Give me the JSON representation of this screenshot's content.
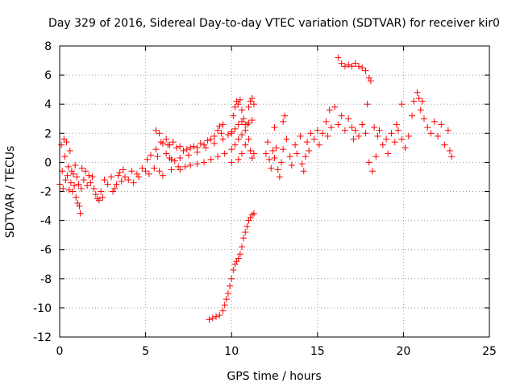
{
  "chart_data": {
    "type": "scatter",
    "title": "Day 329 of 2016, Sidereal Day-to-day VTEC variation (SDTVAR) for receiver kir0",
    "xlabel": "GPS time / hours",
    "ylabel": "SDTVAR / TECUs",
    "xlim": [
      0,
      25
    ],
    "ylim": [
      -12,
      8
    ],
    "grid": true,
    "legend": "none",
    "marker": "+",
    "marker_color": "#ff0000",
    "x_ticks": [
      "0",
      "5",
      "10",
      "15",
      "20",
      "25"
    ],
    "y_ticks": [
      "-12",
      "-10",
      "-8",
      "-6",
      "-4",
      "-2",
      "0",
      "2",
      "4",
      "6",
      "8"
    ],
    "series": [
      {
        "name": "SDTVAR",
        "points": [
          [
            0.0,
            -1.5
          ],
          [
            0.1,
            1.2
          ],
          [
            0.15,
            -0.6
          ],
          [
            0.2,
            -1.8
          ],
          [
            0.25,
            1.6
          ],
          [
            0.3,
            0.4
          ],
          [
            0.35,
            -1.2
          ],
          [
            0.4,
            1.4
          ],
          [
            0.45,
            -0.9
          ],
          [
            0.5,
            -0.3
          ],
          [
            0.55,
            -1.9
          ],
          [
            0.6,
            0.8
          ],
          [
            0.65,
            -1.4
          ],
          [
            0.7,
            -0.6
          ],
          [
            0.75,
            -2.0
          ],
          [
            0.8,
            -0.8
          ],
          [
            0.85,
            -1.6
          ],
          [
            0.9,
            -0.2
          ],
          [
            0.95,
            -2.4
          ],
          [
            1.0,
            -1.0
          ],
          [
            1.05,
            -2.8
          ],
          [
            1.1,
            -1.5
          ],
          [
            1.15,
            -3.0
          ],
          [
            1.2,
            -3.5
          ],
          [
            1.25,
            -1.8
          ],
          [
            1.3,
            -0.4
          ],
          [
            1.4,
            -1.2
          ],
          [
            1.5,
            -0.6
          ],
          [
            1.6,
            -1.6
          ],
          [
            1.7,
            -0.9
          ],
          [
            1.8,
            -1.4
          ],
          [
            1.9,
            -1.0
          ],
          [
            2.0,
            -1.8
          ],
          [
            2.1,
            -2.2
          ],
          [
            2.2,
            -2.5
          ],
          [
            2.3,
            -2.6
          ],
          [
            2.4,
            -2.0
          ],
          [
            2.5,
            -2.4
          ],
          [
            2.6,
            -1.2
          ],
          [
            2.8,
            -1.5
          ],
          [
            3.0,
            -1.0
          ],
          [
            3.1,
            -2.0
          ],
          [
            3.2,
            -1.8
          ],
          [
            3.3,
            -1.5
          ],
          [
            3.4,
            -0.9
          ],
          [
            3.5,
            -0.7
          ],
          [
            3.6,
            -1.3
          ],
          [
            3.7,
            -0.5
          ],
          [
            3.8,
            -1.0
          ],
          [
            4.0,
            -1.2
          ],
          [
            4.2,
            -0.6
          ],
          [
            4.3,
            -1.4
          ],
          [
            4.5,
            -0.8
          ],
          [
            4.6,
            -1.0
          ],
          [
            4.8,
            -0.4
          ],
          [
            5.0,
            -0.6
          ],
          [
            5.1,
            0.2
          ],
          [
            5.2,
            -0.8
          ],
          [
            5.3,
            0.5
          ],
          [
            5.5,
            -0.4
          ],
          [
            5.6,
            0.9
          ],
          [
            5.7,
            0.4
          ],
          [
            5.8,
            -0.6
          ],
          [
            6.0,
            -0.9
          ],
          [
            6.2,
            0.6
          ],
          [
            6.3,
            1.2
          ],
          [
            6.4,
            0.3
          ],
          [
            6.5,
            -0.5
          ],
          [
            6.7,
            0.1
          ],
          [
            6.9,
            -0.3
          ],
          [
            5.6,
            2.2
          ],
          [
            5.8,
            2.0
          ],
          [
            5.9,
            1.4
          ],
          [
            6.0,
            1.3
          ],
          [
            6.2,
            1.6
          ],
          [
            6.4,
            1.2
          ],
          [
            6.6,
            1.4
          ],
          [
            6.8,
            1.0
          ],
          [
            7.0,
            1.1
          ],
          [
            7.2,
            0.8
          ],
          [
            7.4,
            0.9
          ],
          [
            7.6,
            1.0
          ],
          [
            7.8,
            1.1
          ],
          [
            8.0,
            1.0
          ],
          [
            8.2,
            1.3
          ],
          [
            8.4,
            1.2
          ],
          [
            8.6,
            1.5
          ],
          [
            8.8,
            1.6
          ],
          [
            9.0,
            1.8
          ],
          [
            9.2,
            2.2
          ],
          [
            9.4,
            2.0
          ],
          [
            9.5,
            2.6
          ],
          [
            9.3,
            2.5
          ],
          [
            7.0,
            -0.5
          ],
          [
            7.3,
            -0.3
          ],
          [
            7.6,
            -0.2
          ],
          [
            8.0,
            -0.1
          ],
          [
            8.4,
            0.0
          ],
          [
            8.8,
            0.2
          ],
          [
            9.2,
            0.4
          ],
          [
            9.6,
            0.6
          ],
          [
            10.0,
            0.9
          ],
          [
            10.2,
            1.2
          ],
          [
            10.4,
            1.6
          ],
          [
            10.6,
            1.9
          ],
          [
            6.5,
            0.2
          ],
          [
            7.0,
            0.3
          ],
          [
            7.5,
            0.5
          ],
          [
            8.0,
            0.7
          ],
          [
            8.5,
            1.0
          ],
          [
            9.0,
            1.3
          ],
          [
            9.5,
            1.6
          ],
          [
            9.8,
            1.9
          ],
          [
            10.0,
            2.1
          ],
          [
            10.2,
            2.3
          ],
          [
            10.4,
            2.6
          ],
          [
            10.6,
            2.8
          ],
          [
            10.8,
            2.6
          ],
          [
            11.0,
            2.7
          ],
          [
            11.2,
            2.9
          ],
          [
            10.0,
            2.0
          ],
          [
            10.1,
            3.2
          ],
          [
            10.2,
            3.8
          ],
          [
            10.3,
            4.2
          ],
          [
            10.4,
            4.0
          ],
          [
            10.5,
            4.3
          ],
          [
            10.6,
            3.6
          ],
          [
            10.7,
            3.0
          ],
          [
            10.8,
            2.2
          ],
          [
            10.9,
            2.6
          ],
          [
            11.0,
            3.8
          ],
          [
            11.1,
            4.2
          ],
          [
            11.2,
            4.4
          ],
          [
            11.3,
            4.0
          ],
          [
            11.0,
            1.6
          ],
          [
            11.1,
            0.8
          ],
          [
            11.2,
            0.3
          ],
          [
            11.3,
            0.6
          ],
          [
            10.8,
            1.2
          ],
          [
            10.6,
            0.6
          ],
          [
            10.4,
            0.2
          ],
          [
            10.0,
            0.0
          ],
          [
            8.7,
            -10.8
          ],
          [
            8.9,
            -10.7
          ],
          [
            9.1,
            -10.6
          ],
          [
            9.3,
            -10.5
          ],
          [
            9.5,
            -10.2
          ],
          [
            9.6,
            -9.8
          ],
          [
            9.7,
            -9.4
          ],
          [
            9.8,
            -9.0
          ],
          [
            9.9,
            -8.5
          ],
          [
            10.0,
            -8.0
          ],
          [
            10.1,
            -7.4
          ],
          [
            10.2,
            -7.0
          ],
          [
            10.3,
            -6.8
          ],
          [
            10.4,
            -6.6
          ],
          [
            10.5,
            -6.3
          ],
          [
            10.6,
            -5.8
          ],
          [
            10.7,
            -5.2
          ],
          [
            10.8,
            -4.8
          ],
          [
            10.9,
            -4.4
          ],
          [
            11.0,
            -4.0
          ],
          [
            11.1,
            -3.8
          ],
          [
            11.2,
            -3.6
          ],
          [
            11.3,
            -3.5
          ],
          [
            12.0,
            0.6
          ],
          [
            12.1,
            1.4
          ],
          [
            12.2,
            0.2
          ],
          [
            12.3,
            -0.4
          ],
          [
            12.4,
            0.8
          ],
          [
            12.5,
            2.4
          ],
          [
            12.6,
            1.0
          ],
          [
            12.7,
            -0.5
          ],
          [
            12.8,
            -1.0
          ],
          [
            12.9,
            0.0
          ],
          [
            13.0,
            2.8
          ],
          [
            13.1,
            3.2
          ],
          [
            13.2,
            1.6
          ],
          [
            13.4,
            0.4
          ],
          [
            13.5,
            -0.2
          ],
          [
            13.7,
            1.2
          ],
          [
            13.8,
            0.6
          ],
          [
            14.0,
            1.8
          ],
          [
            14.1,
            -0.1
          ],
          [
            14.2,
            -0.6
          ],
          [
            14.3,
            0.4
          ],
          [
            14.4,
            1.4
          ],
          [
            14.5,
            0.8
          ],
          [
            14.6,
            2.0
          ],
          [
            14.8,
            1.6
          ],
          [
            15.0,
            2.2
          ],
          [
            15.1,
            1.2
          ],
          [
            15.3,
            2.0
          ],
          [
            15.5,
            2.8
          ],
          [
            15.6,
            1.8
          ],
          [
            15.7,
            3.6
          ],
          [
            15.8,
            2.4
          ],
          [
            16.0,
            3.8
          ],
          [
            16.2,
            2.6
          ],
          [
            16.4,
            3.2
          ],
          [
            16.6,
            2.2
          ],
          [
            16.8,
            3.0
          ],
          [
            17.0,
            2.4
          ],
          [
            17.1,
            1.6
          ],
          [
            17.2,
            2.2
          ],
          [
            17.4,
            1.8
          ],
          [
            17.6,
            2.6
          ],
          [
            17.8,
            2.0
          ],
          [
            18.0,
            0.0
          ],
          [
            18.2,
            -0.6
          ],
          [
            18.4,
            0.4
          ],
          [
            18.5,
            1.8
          ],
          [
            18.6,
            2.2
          ],
          [
            18.8,
            1.2
          ],
          [
            19.0,
            1.6
          ],
          [
            19.1,
            0.6
          ],
          [
            19.3,
            2.0
          ],
          [
            19.5,
            1.4
          ],
          [
            19.7,
            2.2
          ],
          [
            19.9,
            1.6
          ],
          [
            20.1,
            1.0
          ],
          [
            20.3,
            1.8
          ],
          [
            20.5,
            3.2
          ],
          [
            20.6,
            4.2
          ],
          [
            20.8,
            4.8
          ],
          [
            20.9,
            4.4
          ],
          [
            21.0,
            3.6
          ],
          [
            21.1,
            4.2
          ],
          [
            21.2,
            3.0
          ],
          [
            21.4,
            2.4
          ],
          [
            21.6,
            2.0
          ],
          [
            21.8,
            2.8
          ],
          [
            22.0,
            1.8
          ],
          [
            22.2,
            2.6
          ],
          [
            22.4,
            1.2
          ],
          [
            22.6,
            2.2
          ],
          [
            22.7,
            0.8
          ],
          [
            22.8,
            0.4
          ],
          [
            16.2,
            7.2
          ],
          [
            16.4,
            6.8
          ],
          [
            16.6,
            6.6
          ],
          [
            16.8,
            6.7
          ],
          [
            17.0,
            6.6
          ],
          [
            17.2,
            6.8
          ],
          [
            17.4,
            6.6
          ],
          [
            17.6,
            6.5
          ],
          [
            17.8,
            6.3
          ],
          [
            18.0,
            5.8
          ],
          [
            18.1,
            5.6
          ],
          [
            17.9,
            4.0
          ],
          [
            18.3,
            2.4
          ],
          [
            19.9,
            4.0
          ],
          [
            19.6,
            2.6
          ],
          [
            13.0,
            0.9
          ],
          [
            12.5,
            0.3
          ]
        ]
      }
    ]
  }
}
